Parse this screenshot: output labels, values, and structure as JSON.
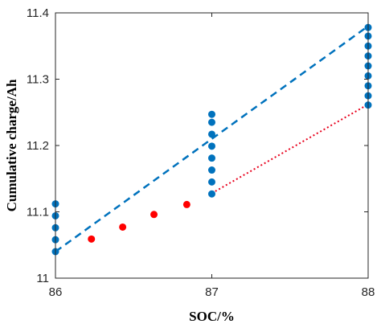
{
  "chart_data": {
    "type": "scatter",
    "title": "",
    "xlabel": "SOC/%",
    "ylabel": "Cumulative charge/Ah",
    "xlim": [
      86,
      88
    ],
    "ylim": [
      11,
      11.4
    ],
    "x_ticks": [
      "86",
      "87",
      "88"
    ],
    "y_ticks": [
      "11",
      "11.1",
      "11.2",
      "11.3",
      "11.4"
    ],
    "grid": false,
    "box": true,
    "series": [
      {
        "kind": "points",
        "color": "#0072BD",
        "points": [
          [
            86,
            11.04
          ],
          [
            86,
            11.058
          ],
          [
            86,
            11.076
          ],
          [
            86,
            11.094
          ],
          [
            86,
            11.112
          ],
          [
            87,
            11.127
          ],
          [
            87,
            11.145
          ],
          [
            87,
            11.163
          ],
          [
            87,
            11.181
          ],
          [
            87,
            11.199
          ],
          [
            87,
            11.217
          ],
          [
            87,
            11.235
          ],
          [
            87,
            11.247
          ],
          [
            88,
            11.261
          ],
          [
            88,
            11.275
          ],
          [
            88,
            11.29
          ],
          [
            88,
            11.305
          ],
          [
            88,
            11.32
          ],
          [
            88,
            11.335
          ],
          [
            88,
            11.35
          ],
          [
            88,
            11.365
          ],
          [
            88,
            11.378
          ]
        ]
      },
      {
        "kind": "line",
        "style": "dashed",
        "color": "#0072BD",
        "points": [
          [
            86,
            11.04
          ],
          [
            88,
            11.38
          ]
        ]
      },
      {
        "kind": "points",
        "color": "#FF0000",
        "points": [
          [
            86.23,
            11.059
          ],
          [
            86.43,
            11.077
          ],
          [
            86.63,
            11.096
          ],
          [
            86.84,
            11.111
          ]
        ]
      },
      {
        "kind": "line",
        "style": "dotted",
        "color": "#E8001C",
        "points": [
          [
            87,
            11.128
          ],
          [
            88,
            11.262
          ]
        ]
      }
    ]
  }
}
